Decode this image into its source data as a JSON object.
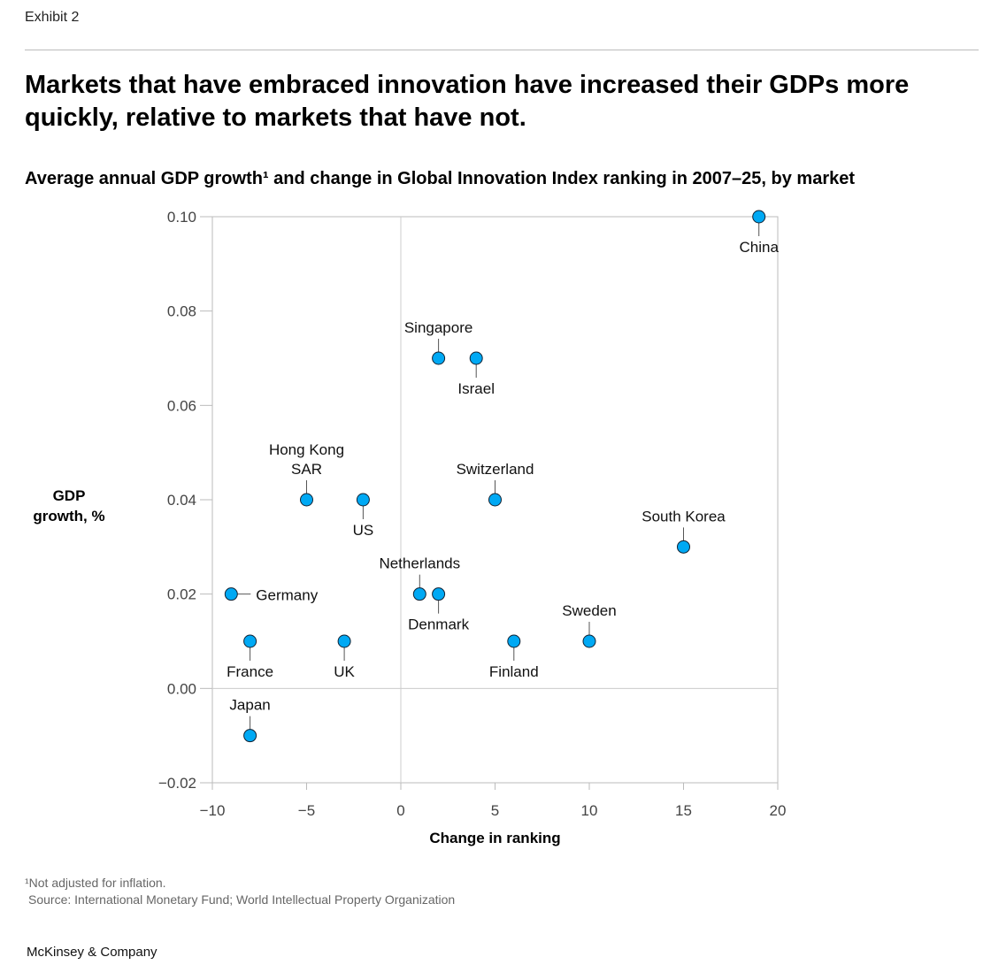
{
  "exhibit": "Exhibit 2",
  "title": "Markets that have embraced innovation have increased their GDPs more quickly, relative to markets that have not.",
  "subtitle": "Average annual GDP growth¹ and change in Global Innovation Index ranking in 2007–25, by market",
  "footnote": "¹Not adjusted for inflation.",
  "source": "Source: International Monetary Fund; World Intellectual Property Organization",
  "brand": "McKinsey & Company",
  "chart_data": {
    "type": "scatter",
    "xlabel": "Change in ranking",
    "ylabel_line1": "GDP",
    "ylabel_line2": "growth, %",
    "xlim": [
      -10,
      20
    ],
    "ylim": [
      -0.02,
      0.1
    ],
    "xticks": [
      -10,
      -5,
      0,
      5,
      10,
      15,
      20
    ],
    "xtick_labels": [
      "−10",
      "−5",
      "0",
      "5",
      "10",
      "15",
      "20"
    ],
    "yticks": [
      0.1,
      0.08,
      0.06,
      0.04,
      0.02,
      0.0,
      -0.02
    ],
    "ytick_labels": [
      "0.10",
      "0.08",
      "0.06",
      "0.04",
      "0.02",
      "0.00",
      "−0.02"
    ],
    "point_color": "#00a9f4",
    "points": [
      {
        "name": "China",
        "x": 19,
        "y": 0.1,
        "label_pos": "below"
      },
      {
        "name": "Singapore",
        "x": 2,
        "y": 0.07,
        "label_pos": "above"
      },
      {
        "name": "Israel",
        "x": 4,
        "y": 0.07,
        "label_pos": "below"
      },
      {
        "name": "Hong Kong SAR",
        "x": -5,
        "y": 0.04,
        "label_pos": "above",
        "label_lines": [
          "Hong Kong",
          "SAR"
        ]
      },
      {
        "name": "US",
        "x": -2,
        "y": 0.04,
        "label_pos": "below"
      },
      {
        "name": "Switzerland",
        "x": 5,
        "y": 0.04,
        "label_pos": "above"
      },
      {
        "name": "South Korea",
        "x": 15,
        "y": 0.03,
        "label_pos": "above"
      },
      {
        "name": "Germany",
        "x": -9,
        "y": 0.02,
        "label_pos": "right"
      },
      {
        "name": "Netherlands",
        "x": 1,
        "y": 0.02,
        "label_pos": "above"
      },
      {
        "name": "Denmark",
        "x": 2,
        "y": 0.02,
        "label_pos": "below"
      },
      {
        "name": "France",
        "x": -8,
        "y": 0.01,
        "label_pos": "below"
      },
      {
        "name": "UK",
        "x": -3,
        "y": 0.01,
        "label_pos": "below"
      },
      {
        "name": "Finland",
        "x": 6,
        "y": 0.01,
        "label_pos": "below"
      },
      {
        "name": "Sweden",
        "x": 10,
        "y": 0.01,
        "label_pos": "above"
      },
      {
        "name": "Japan",
        "x": -8,
        "y": -0.01,
        "label_pos": "above"
      }
    ]
  }
}
